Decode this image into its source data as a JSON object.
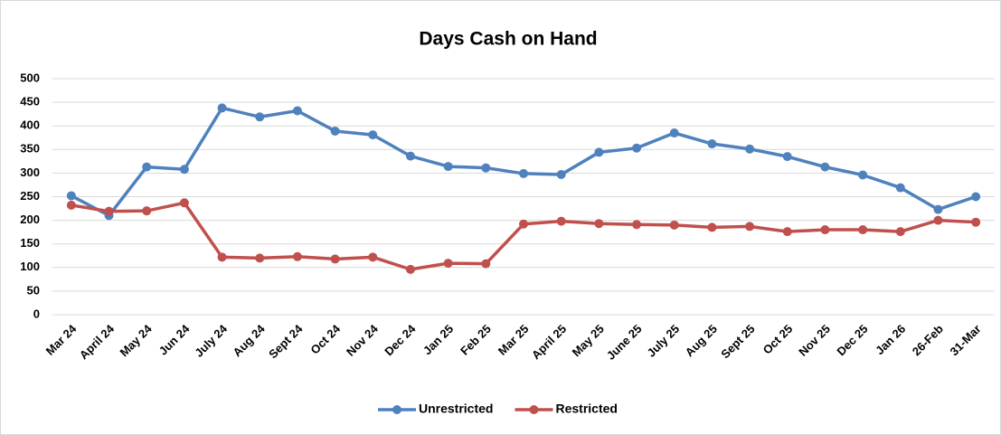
{
  "chart_data": {
    "type": "line",
    "title": "Days Cash on Hand",
    "categories": [
      "Mar 24",
      "April 24",
      "May 24",
      "Jun 24",
      "July 24",
      "Aug 24",
      "Sept 24",
      "Oct 24",
      "Nov 24",
      "Dec 24",
      "Jan 25",
      "Feb 25",
      "Mar 25",
      "April 25",
      "May 25",
      "June 25",
      "July 25",
      "Aug 25",
      "Sept 25",
      "Oct 25",
      "Nov 25",
      "Dec 25",
      "Jan 26",
      "26-Feb",
      "31-Mar"
    ],
    "series": [
      {
        "name": "Unrestricted",
        "color": "#4f81bd",
        "values": [
          252,
          210,
          313,
          308,
          438,
          419,
          432,
          389,
          381,
          336,
          314,
          311,
          299,
          297,
          344,
          353,
          385,
          362,
          351,
          335,
          313,
          296,
          269,
          223,
          250
        ]
      },
      {
        "name": "Restricted",
        "color": "#c0504d",
        "values": [
          232,
          219,
          220,
          237,
          122,
          120,
          123,
          118,
          122,
          96,
          109,
          108,
          192,
          198,
          193,
          191,
          190,
          185,
          187,
          176,
          180,
          180,
          176,
          200,
          196
        ]
      }
    ],
    "ylim": [
      0,
      500
    ],
    "yticks": [
      0,
      50,
      100,
      150,
      200,
      250,
      300,
      350,
      400,
      450,
      500
    ],
    "grid": true,
    "legend": "bottom"
  }
}
